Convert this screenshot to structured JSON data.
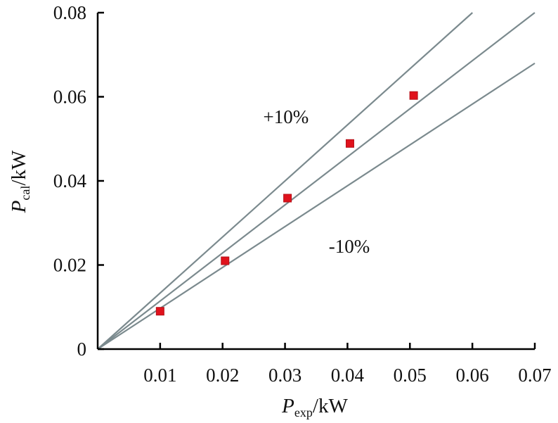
{
  "chart_data": {
    "type": "scatter",
    "xlabel": {
      "main": "P",
      "sub": "exp",
      "unit": "/kW"
    },
    "ylabel": {
      "main": "P",
      "sub": "cal",
      "unit": "/kW"
    },
    "xlim": [
      0,
      0.07
    ],
    "ylim": [
      0,
      0.08
    ],
    "x_ticks": [
      "0.01",
      "0.02",
      "0.03",
      "0.04",
      "0.05",
      "0.06",
      "0.07"
    ],
    "y_ticks": [
      "0",
      "0.02",
      "0.04",
      "0.06",
      "0.08"
    ],
    "grid": false,
    "reference_lines": [
      {
        "slope": 1.333,
        "label": "+10%"
      },
      {
        "slope": 1.143,
        "label": ""
      },
      {
        "slope": 0.971,
        "label": "-10%"
      }
    ],
    "series": [
      {
        "marker": "square",
        "color": "#e0121c",
        "x": [
          0.01,
          0.0204,
          0.0304,
          0.0404,
          0.0506
        ],
        "y": [
          0.009,
          0.021,
          0.0359,
          0.0489,
          0.0603
        ]
      }
    ],
    "annotations": [
      {
        "text": "+10%",
        "x": 0.0265,
        "y": 0.0552
      },
      {
        "text": "-10%",
        "x": 0.037,
        "y": 0.0244
      }
    ]
  }
}
